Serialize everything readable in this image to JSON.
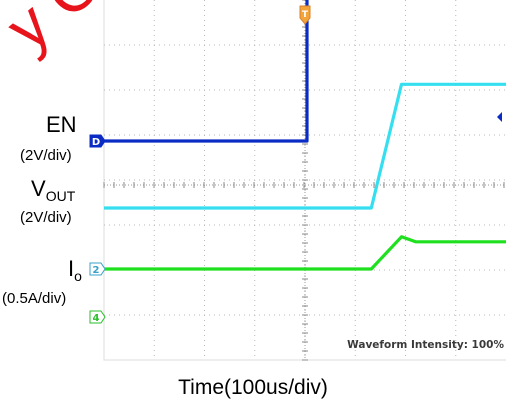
{
  "watermark": "y Con",
  "labels": {
    "en": "EN",
    "en_scale": "(2V/div)",
    "vout_main": "V",
    "vout_sub": "OUT",
    "vout_scale": "(2V/div)",
    "io_main": "I",
    "io_sub": "o",
    "io_scale": "(0.5A/div)",
    "x_axis": "Time(100us/div)"
  },
  "scope": {
    "intensity": "Waveform Intensity: 100%",
    "trigger_marker": "T",
    "ch_markers": [
      "D",
      "2",
      "4"
    ]
  },
  "chart_data": {
    "type": "line",
    "xlabel": "Time(100us/div)",
    "x_unit": "us",
    "xlim": [
      0,
      400
    ],
    "grid": true,
    "series": [
      {
        "name": "EN",
        "color": "#0a2cc4",
        "scale": "2V/div",
        "x": [
          0,
          202,
          202,
          400
        ],
        "y": [
          0,
          0,
          6.6,
          6.6
        ]
      },
      {
        "name": "VOUT",
        "color": "#35dff0",
        "scale": "2V/div",
        "x": [
          0,
          266,
          296,
          400
        ],
        "y": [
          0,
          0,
          5.0,
          5.0
        ]
      },
      {
        "name": "Io",
        "color": "#1fe01f",
        "scale": "0.5A/div",
        "x": [
          0,
          266,
          296,
          310,
          400
        ],
        "y": [
          0,
          0,
          1.3,
          1.1,
          1.1
        ]
      }
    ]
  },
  "style": {
    "frame_color": "#dcdcdc",
    "grid_color": "#b8b8b8",
    "watermark_color": "#e8141c"
  }
}
